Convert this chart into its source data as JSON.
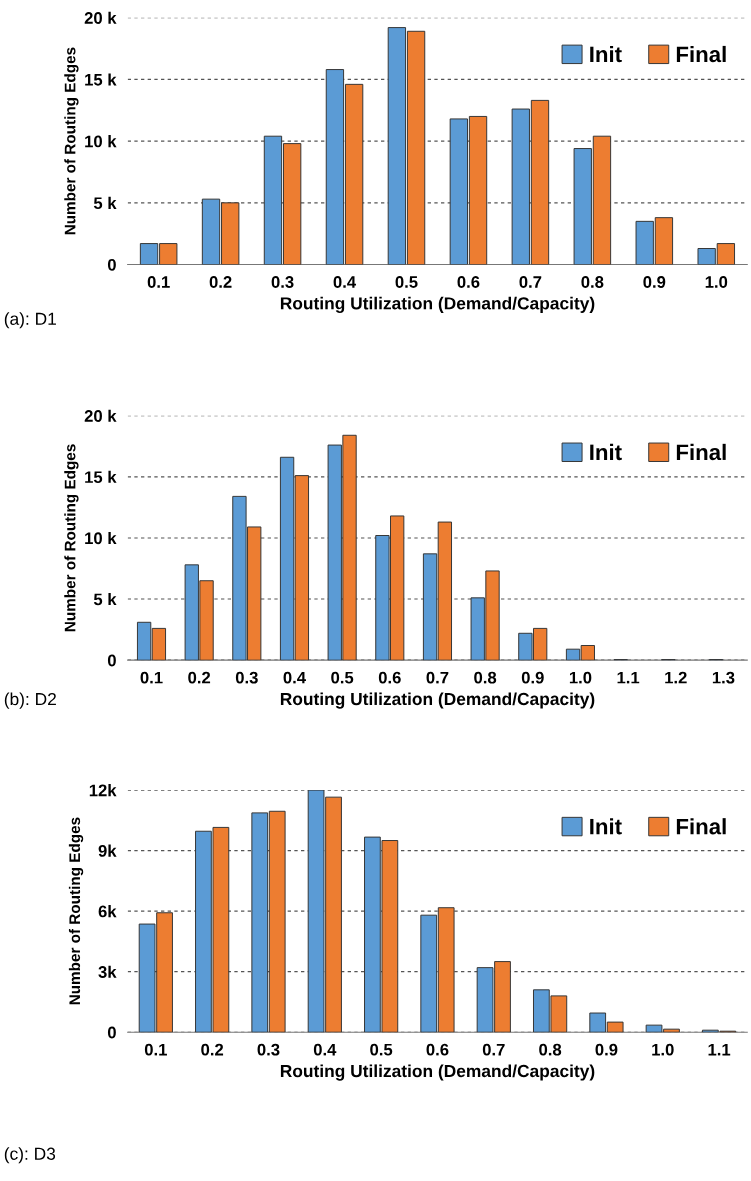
{
  "chart_data": [
    {
      "type": "bar",
      "xlabel": "Routing Utilization (Demand/Capacity)",
      "ylabel": "Number of Routing Edges",
      "annotations": [
        "(a): D1"
      ],
      "categories": [
        "0.1",
        "0.2",
        "0.3",
        "0.4",
        "0.5",
        "0.6",
        "0.7",
        "0.8",
        "0.9",
        "1.0"
      ],
      "series": [
        {
          "name": "Init",
          "color": "#5b9bd5",
          "values": [
            1700,
            5300,
            10400,
            15800,
            19200,
            11800,
            12600,
            9400,
            3500,
            1300
          ]
        },
        {
          "name": "Final",
          "color": "#ed7d31",
          "values": [
            1700,
            5000,
            9800,
            14600,
            18900,
            12000,
            13300,
            10400,
            3800,
            1700
          ]
        }
      ],
      "ylim": [
        0,
        20000
      ],
      "yticks": [
        0,
        {
          "value": 5000,
          "label": "5 k"
        },
        {
          "value": 10000,
          "label": "10 k"
        },
        {
          "value": 15000,
          "label": "15 k"
        },
        {
          "value": 20000,
          "label": "20 k"
        }
      ],
      "grid": "y",
      "legend": "top right"
    },
    {
      "type": "bar",
      "xlabel": "Routing Utilization (Demand/Capacity)",
      "ylabel": "Number of Routing Edges",
      "annotations": [
        "(b): D2"
      ],
      "categories": [
        "0.1",
        "0.2",
        "0.3",
        "0.4",
        "0.5",
        "0.6",
        "0.7",
        "0.8",
        "0.9",
        "1.0",
        "1.1",
        "1.2",
        "1.3"
      ],
      "series": [
        {
          "name": "Init",
          "color": "#5b9bd5",
          "values": [
            3100,
            7800,
            13400,
            16600,
            17600,
            10200,
            8700,
            5100,
            2200,
            900,
            50,
            50,
            50
          ]
        },
        {
          "name": "Final",
          "color": "#ed7d31",
          "values": [
            2600,
            6500,
            10900,
            15100,
            18400,
            11800,
            11300,
            7300,
            2600,
            1200,
            null,
            null,
            null
          ]
        }
      ],
      "ylim": [
        0,
        20000
      ],
      "yticks": [
        0,
        {
          "value": 5000,
          "label": "5 k"
        },
        {
          "value": 10000,
          "label": "10 k"
        },
        {
          "value": 15000,
          "label": "15 k"
        },
        {
          "value": 20000,
          "label": "20 k"
        }
      ],
      "grid": "y",
      "legend": "top right"
    },
    {
      "type": "bar",
      "xlabel": "Routing Utilization (Demand/Capacity)",
      "ylabel": "Number of Routing Edges",
      "annotations": [
        "(c): D3"
      ],
      "categories": [
        "0.1",
        "0.2",
        "0.3",
        "0.4",
        "0.5",
        "0.6",
        "0.7",
        "0.8",
        "0.9",
        "1.0",
        "1.1"
      ],
      "series": [
        {
          "name": "Init",
          "color": "#5b9bd5",
          "values": [
            5360,
            9960,
            10870,
            12000,
            9670,
            5800,
            3200,
            2100,
            950,
            350,
            100
          ]
        },
        {
          "name": "Final",
          "color": "#ed7d31",
          "values": [
            5920,
            10150,
            10950,
            11650,
            9500,
            6170,
            3500,
            1800,
            500,
            150,
            50
          ]
        }
      ],
      "ylim": [
        0,
        12000
      ],
      "yticks": [
        0,
        {
          "value": 3000,
          "label": "3k"
        },
        {
          "value": 6000,
          "label": "6k"
        },
        {
          "value": 9000,
          "label": "9k"
        },
        {
          "value": 12000,
          "label": "12k"
        }
      ],
      "grid": "y",
      "legend": "top right"
    }
  ]
}
